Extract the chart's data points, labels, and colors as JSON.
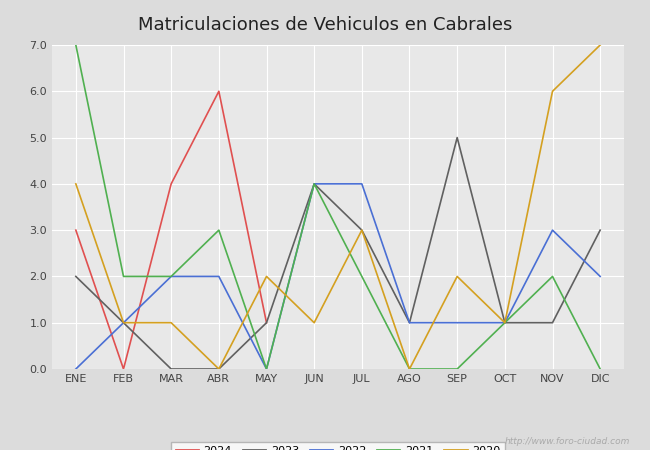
{
  "title": "Matriculaciones de Vehiculos en Cabrales",
  "months": [
    "ENE",
    "FEB",
    "MAR",
    "ABR",
    "MAY",
    "JUN",
    "JUL",
    "AGO",
    "SEP",
    "OCT",
    "NOV",
    "DIC"
  ],
  "series": {
    "2024": [
      3,
      0,
      4,
      6,
      1,
      null,
      null,
      null,
      null,
      null,
      null,
      null
    ],
    "2023": [
      2,
      1,
      0,
      0,
      1,
      4,
      3,
      1,
      5,
      1,
      1,
      3
    ],
    "2022": [
      0,
      1,
      2,
      2,
      0,
      4,
      4,
      1,
      1,
      1,
      3,
      2
    ],
    "2021": [
      7,
      2,
      2,
      3,
      0,
      4,
      2,
      0,
      0,
      1,
      2,
      0
    ],
    "2020": [
      4,
      1,
      1,
      0,
      2,
      1,
      3,
      0,
      2,
      1,
      6,
      7
    ]
  },
  "colors": {
    "2024": "#e05050",
    "2023": "#606060",
    "2022": "#4a6fd4",
    "2021": "#50b050",
    "2020": "#d4a020"
  },
  "ylim": [
    0.0,
    7.0
  ],
  "yticks": [
    0.0,
    1.0,
    2.0,
    3.0,
    4.0,
    5.0,
    6.0,
    7.0
  ],
  "title_fontsize": 13,
  "tick_fontsize": 8,
  "legend_fontsize": 8,
  "outer_bg": "#dcdcdc",
  "plot_bg": "#e8e8e8",
  "watermark": "http://www.foro-ciudad.com"
}
